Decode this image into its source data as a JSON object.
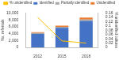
{
  "chart_data": {
    "type": "bar",
    "stacked": true,
    "legend": "top",
    "grid": false,
    "categories": [
      "2012",
      "2015",
      "2018"
    ],
    "y_label": "No. referrals",
    "y2_label": "% unidentified cultures",
    "ylim": [
      0,
      10000
    ],
    "yticks": [
      0,
      {
        "value": 2000,
        "label": "2,000"
      },
      {
        "value": 4000,
        "label": "4,000"
      },
      {
        "value": 6000,
        "label": "6,000"
      },
      {
        "value": 8000,
        "label": "8,000"
      },
      {
        "value": 10000,
        "label": "10,000"
      }
    ],
    "y2lim": [
      0,
      0.16
    ],
    "y2ticks": [
      0,
      0.02,
      0.04,
      0.06,
      0.08,
      0.1,
      0.12,
      0.14,
      0.16
    ],
    "series": [
      {
        "name": "Identified",
        "color": "#4472c4",
        "values": [
          3900,
          5700,
          7700
        ]
      },
      {
        "name": "Partially identified",
        "color": "#a5a5a5",
        "values": [
          300,
          300,
          400
        ]
      },
      {
        "name": "Unidentified",
        "color": "#ed7d31",
        "values": [
          200,
          300,
          600
        ]
      },
      {
        "name": "% unidentified",
        "type": "line",
        "axis": "y2",
        "color": "#ffc000",
        "values": [
          0.14,
          0.03,
          0.02
        ]
      }
    ]
  }
}
